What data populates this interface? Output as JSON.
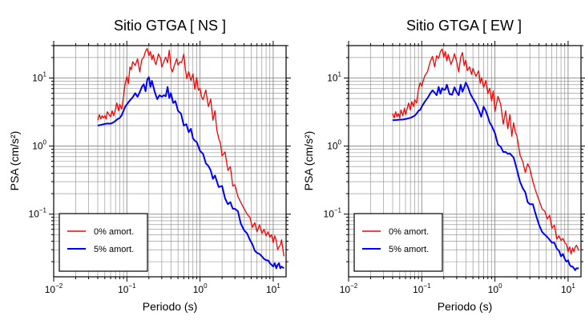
{
  "chart_data": [
    {
      "type": "line",
      "title": "Sitio GTGA [ NS ]",
      "xlabel": "Periodo (s)",
      "ylabel": "PSA (cm/s²)",
      "xscale": "log",
      "yscale": "log",
      "xlim": [
        0.01,
        15
      ],
      "ylim": [
        0.012,
        30
      ],
      "grid": true,
      "legend_position": "bottom-left",
      "series": [
        {
          "name": "0% amort.",
          "color": "#ff0000",
          "x": [
            0.04,
            0.042,
            0.044,
            0.046,
            0.048,
            0.05,
            0.052,
            0.054,
            0.057,
            0.06,
            0.063,
            0.066,
            0.07,
            0.073,
            0.077,
            0.08,
            0.085,
            0.09,
            0.095,
            0.1,
            0.105,
            0.11,
            0.115,
            0.12,
            0.13,
            0.14,
            0.15,
            0.16,
            0.17,
            0.18,
            0.19,
            0.2,
            0.21,
            0.22,
            0.23,
            0.24,
            0.25,
            0.27,
            0.29,
            0.3,
            0.32,
            0.34,
            0.36,
            0.38,
            0.4,
            0.42,
            0.45,
            0.48,
            0.5,
            0.53,
            0.56,
            0.6,
            0.63,
            0.66,
            0.7,
            0.75,
            0.8,
            0.85,
            0.9,
            0.95,
            1.0,
            1.05,
            1.1,
            1.2,
            1.3,
            1.4,
            1.5,
            1.6,
            1.7,
            1.8,
            1.9,
            2.0,
            2.2,
            2.4,
            2.6,
            2.8,
            3.0,
            3.3,
            3.6,
            4.0,
            4.4,
            4.8,
            5.2,
            5.6,
            6.0,
            6.5,
            7.0,
            7.5,
            8.0,
            8.5,
            9.0,
            9.5,
            10,
            10.5,
            11,
            11.5,
            12,
            12.5,
            13,
            14
          ],
          "y": [
            2.4,
            2.9,
            2.5,
            2.8,
            2.6,
            2.8,
            2.5,
            3.2,
            2.9,
            2.7,
            3.3,
            2.8,
            3.5,
            4.3,
            3.3,
            4.1,
            3.5,
            5.4,
            8.4,
            10.5,
            8.3,
            14.5,
            13.3,
            17.4,
            15.3,
            19.2,
            12.3,
            18.7,
            20.2,
            24.8,
            27.2,
            21.3,
            24.6,
            18.6,
            21.9,
            17.6,
            15.8,
            22.6,
            19.3,
            14.5,
            17.4,
            20.3,
            16.8,
            25.7,
            14.2,
            12.3,
            15.8,
            19.2,
            15.5,
            17.3,
            16.9,
            22.5,
            13.5,
            9.8,
            12.4,
            9.2,
            11.5,
            6.8,
            10.2,
            6.6,
            7.1,
            5.3,
            4.8,
            6.7,
            3.8,
            4.9,
            2.4,
            3.3,
            1.7,
            1.3,
            1.1,
            0.72,
            0.82,
            0.44,
            0.5,
            0.26,
            0.27,
            0.18,
            0.15,
            0.12,
            0.1,
            0.09,
            0.064,
            0.075,
            0.055,
            0.07,
            0.052,
            0.06,
            0.048,
            0.055,
            0.046,
            0.05,
            0.038,
            0.048,
            0.041,
            0.03,
            0.033,
            0.035,
            0.042,
            0.024
          ]
        },
        {
          "name": "5% amort.",
          "color": "#0000ff",
          "x": [
            0.04,
            0.045,
            0.05,
            0.055,
            0.06,
            0.065,
            0.07,
            0.075,
            0.08,
            0.085,
            0.09,
            0.095,
            0.1,
            0.11,
            0.12,
            0.13,
            0.14,
            0.15,
            0.16,
            0.17,
            0.18,
            0.19,
            0.2,
            0.21,
            0.22,
            0.24,
            0.26,
            0.28,
            0.3,
            0.32,
            0.34,
            0.36,
            0.38,
            0.4,
            0.43,
            0.46,
            0.5,
            0.55,
            0.6,
            0.65,
            0.7,
            0.75,
            0.8,
            0.85,
            0.9,
            1.0,
            1.1,
            1.2,
            1.3,
            1.4,
            1.5,
            1.6,
            1.8,
            2.0,
            2.2,
            2.4,
            2.6,
            2.8,
            3.0,
            3.3,
            3.6,
            4.0,
            4.4,
            4.8,
            5.2,
            5.6,
            6.0,
            6.5,
            7.0,
            7.5,
            8.0,
            8.5,
            9.0,
            9.5,
            10,
            10.5,
            11,
            11.5,
            12,
            12.5,
            13,
            14
          ],
          "y": [
            2.0,
            2.06,
            2.12,
            2.15,
            2.14,
            2.22,
            2.35,
            2.5,
            2.6,
            2.85,
            3.3,
            3.8,
            4.1,
            4.7,
            5.2,
            6.0,
            5.3,
            6.2,
            7.4,
            8.1,
            6.4,
            9.5,
            10.3,
            7.4,
            9.1,
            6.3,
            4.9,
            5.6,
            5.3,
            5.6,
            5.4,
            7.4,
            5.1,
            6.0,
            4.3,
            4.6,
            3.3,
            3.0,
            2.0,
            2.1,
            1.6,
            1.8,
            1.3,
            1.2,
            1.15,
            0.85,
            0.77,
            0.56,
            0.51,
            0.44,
            0.33,
            0.37,
            0.25,
            0.26,
            0.17,
            0.14,
            0.15,
            0.12,
            0.12,
            0.11,
            0.073,
            0.058,
            0.052,
            0.042,
            0.036,
            0.029,
            0.027,
            0.026,
            0.024,
            0.022,
            0.021,
            0.021,
            0.019,
            0.018,
            0.017,
            0.019,
            0.016,
            0.018,
            0.019,
            0.016,
            0.017,
            0.016
          ]
        }
      ]
    },
    {
      "type": "line",
      "title": "Sitio GTGA [ EW ]",
      "xlabel": "Periodo (s)",
      "ylabel": "PSA (cm/s²)",
      "xscale": "log",
      "yscale": "log",
      "xlim": [
        0.01,
        15
      ],
      "ylim": [
        0.012,
        30
      ],
      "grid": true,
      "legend_position": "bottom-left",
      "series": [
        {
          "name": "0% amort.",
          "color": "#ff0000",
          "x": [
            0.04,
            0.042,
            0.044,
            0.046,
            0.048,
            0.05,
            0.052,
            0.055,
            0.058,
            0.06,
            0.063,
            0.066,
            0.07,
            0.073,
            0.077,
            0.08,
            0.085,
            0.09,
            0.095,
            0.1,
            0.105,
            0.11,
            0.12,
            0.13,
            0.14,
            0.15,
            0.16,
            0.17,
            0.18,
            0.19,
            0.2,
            0.21,
            0.22,
            0.23,
            0.25,
            0.27,
            0.28,
            0.3,
            0.32,
            0.34,
            0.36,
            0.38,
            0.4,
            0.42,
            0.45,
            0.48,
            0.5,
            0.55,
            0.6,
            0.63,
            0.66,
            0.7,
            0.75,
            0.8,
            0.85,
            0.9,
            0.95,
            1.0,
            1.1,
            1.2,
            1.3,
            1.4,
            1.5,
            1.6,
            1.7,
            1.8,
            1.9,
            2.0,
            2.2,
            2.4,
            2.6,
            2.8,
            3.0,
            3.3,
            3.6,
            4.0,
            4.4,
            4.8,
            5.2,
            5.6,
            6.0,
            6.5,
            7.0,
            7.5,
            8.0,
            8.5,
            9.0,
            9.5,
            10,
            10.5,
            11,
            11.5,
            12,
            12.5,
            13,
            14
          ],
          "y": [
            3.0,
            2.6,
            3.2,
            2.7,
            3.0,
            2.6,
            3.4,
            2.8,
            3.6,
            2.9,
            3.5,
            4.3,
            3.4,
            4.5,
            3.8,
            4.8,
            4.3,
            6.8,
            8.5,
            7.6,
            9.2,
            10.8,
            12.5,
            17.3,
            20.8,
            14.6,
            21.3,
            19.5,
            24.6,
            26.8,
            20.2,
            24.5,
            17.8,
            22.3,
            15.9,
            19.5,
            22.9,
            17.3,
            12.3,
            20.1,
            23.8,
            15.2,
            18.3,
            12.8,
            14.6,
            11.3,
            13.9,
            10.6,
            12.8,
            8.4,
            10.1,
            7.3,
            9.2,
            5.9,
            7.1,
            4.6,
            6.5,
            3.2,
            5.4,
            4.1,
            2.1,
            3.3,
            1.8,
            2.9,
            1.4,
            2.2,
            1.6,
            1.4,
            0.74,
            0.59,
            0.41,
            0.55,
            0.47,
            0.3,
            0.22,
            0.16,
            0.12,
            0.11,
            0.085,
            0.096,
            0.062,
            0.069,
            0.043,
            0.048,
            0.041,
            0.044,
            0.038,
            0.036,
            0.028,
            0.033,
            0.026,
            0.032,
            0.028,
            0.033,
            0.035,
            0.029
          ]
        },
        {
          "name": "5% amort.",
          "color": "#0000ff",
          "x": [
            0.04,
            0.045,
            0.05,
            0.055,
            0.06,
            0.065,
            0.07,
            0.075,
            0.08,
            0.085,
            0.09,
            0.095,
            0.1,
            0.11,
            0.12,
            0.13,
            0.14,
            0.15,
            0.16,
            0.17,
            0.18,
            0.19,
            0.2,
            0.21,
            0.22,
            0.24,
            0.26,
            0.28,
            0.3,
            0.32,
            0.34,
            0.36,
            0.38,
            0.4,
            0.43,
            0.46,
            0.5,
            0.55,
            0.6,
            0.65,
            0.7,
            0.75,
            0.8,
            0.85,
            0.9,
            1.0,
            1.1,
            1.2,
            1.3,
            1.4,
            1.5,
            1.6,
            1.8,
            2.0,
            2.2,
            2.4,
            2.6,
            2.8,
            3.0,
            3.3,
            3.6,
            4.0,
            4.4,
            4.8,
            5.2,
            5.6,
            6.0,
            6.5,
            7.0,
            7.5,
            8.0,
            8.5,
            9.0,
            9.5,
            10,
            10.5,
            11,
            11.5,
            12,
            12.5,
            13,
            14
          ],
          "y": [
            2.4,
            2.42,
            2.45,
            2.45,
            2.5,
            2.55,
            2.6,
            2.7,
            2.8,
            3.0,
            3.3,
            3.4,
            3.8,
            4.5,
            5.1,
            5.9,
            6.6,
            6.1,
            5.6,
            7.4,
            5.9,
            7.1,
            6.7,
            6.8,
            8.0,
            5.8,
            5.7,
            7.3,
            6.2,
            5.6,
            8.0,
            6.3,
            7.3,
            8.6,
            7.3,
            5.9,
            5.0,
            4.2,
            3.4,
            2.7,
            3.8,
            3.3,
            2.7,
            2.2,
            2.0,
            1.55,
            1.05,
            0.98,
            0.82,
            0.82,
            0.77,
            0.78,
            0.68,
            0.45,
            0.3,
            0.24,
            0.21,
            0.15,
            0.14,
            0.14,
            0.1,
            0.07,
            0.055,
            0.05,
            0.046,
            0.042,
            0.038,
            0.038,
            0.031,
            0.029,
            0.024,
            0.026,
            0.022,
            0.02,
            0.021,
            0.018,
            0.017,
            0.017,
            0.016,
            0.015,
            0.016,
            0.016
          ]
        }
      ]
    }
  ]
}
